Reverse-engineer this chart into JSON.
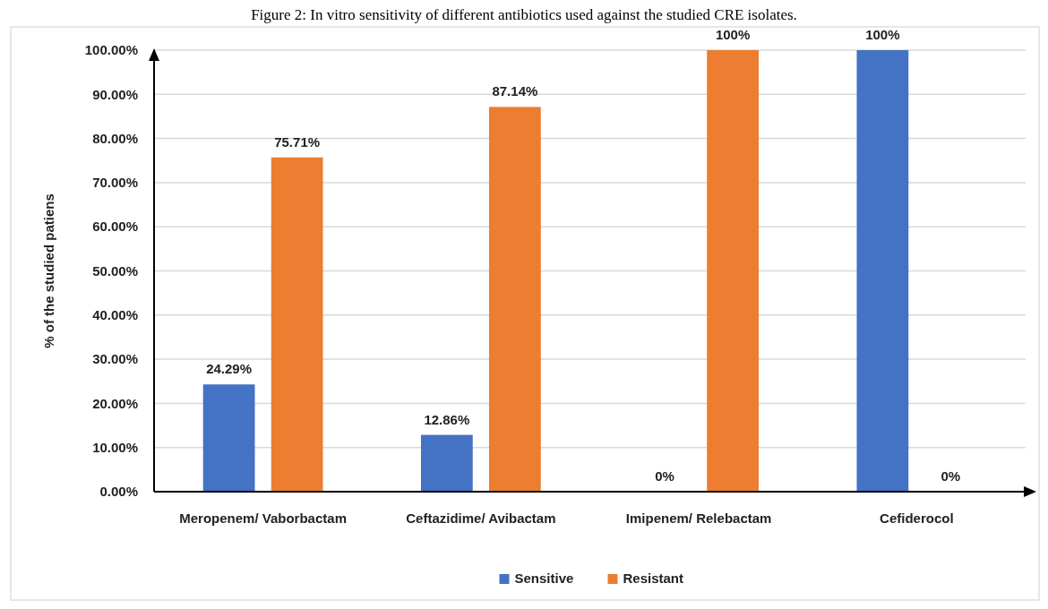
{
  "chart_data": {
    "type": "bar",
    "title": "Figure 2: In vitro sensitivity of different antibiotics used against the studied CRE isolates.",
    "ylabel": "% of the studied patiens",
    "categories": [
      "Meropenem/ Vaborbactam",
      "Ceftazidime/ Avibactam",
      "Imipenem/ Relebactam",
      "Cefiderocol"
    ],
    "series": [
      {
        "name": "Sensitive",
        "color": "#4472c4",
        "values": [
          24.29,
          12.86,
          0,
          100
        ],
        "value_labels": [
          "24.29%",
          "12.86%",
          "0%",
          "100%"
        ]
      },
      {
        "name": "Resistant",
        "color": "#ed7d31",
        "values": [
          75.71,
          87.14,
          100,
          0
        ],
        "value_labels": [
          "75.71%",
          "87.14%",
          "100%",
          "0%"
        ]
      }
    ],
    "ylim": [
      0,
      100
    ],
    "yticks": [
      {
        "value": 0,
        "label": "0.00%"
      },
      {
        "value": 10,
        "label": "10.00%"
      },
      {
        "value": 20,
        "label": "20.00%"
      },
      {
        "value": 30,
        "label": "30.00%"
      },
      {
        "value": 40,
        "label": "40.00%"
      },
      {
        "value": 50,
        "label": "50.00%"
      },
      {
        "value": 60,
        "label": "60.00%"
      },
      {
        "value": 70,
        "label": "70.00%"
      },
      {
        "value": 80,
        "label": "80.00%"
      },
      {
        "value": 90,
        "label": "90.00%"
      },
      {
        "value": 100,
        "label": "100.00%"
      }
    ],
    "grid": "y",
    "legend": "bottom"
  }
}
